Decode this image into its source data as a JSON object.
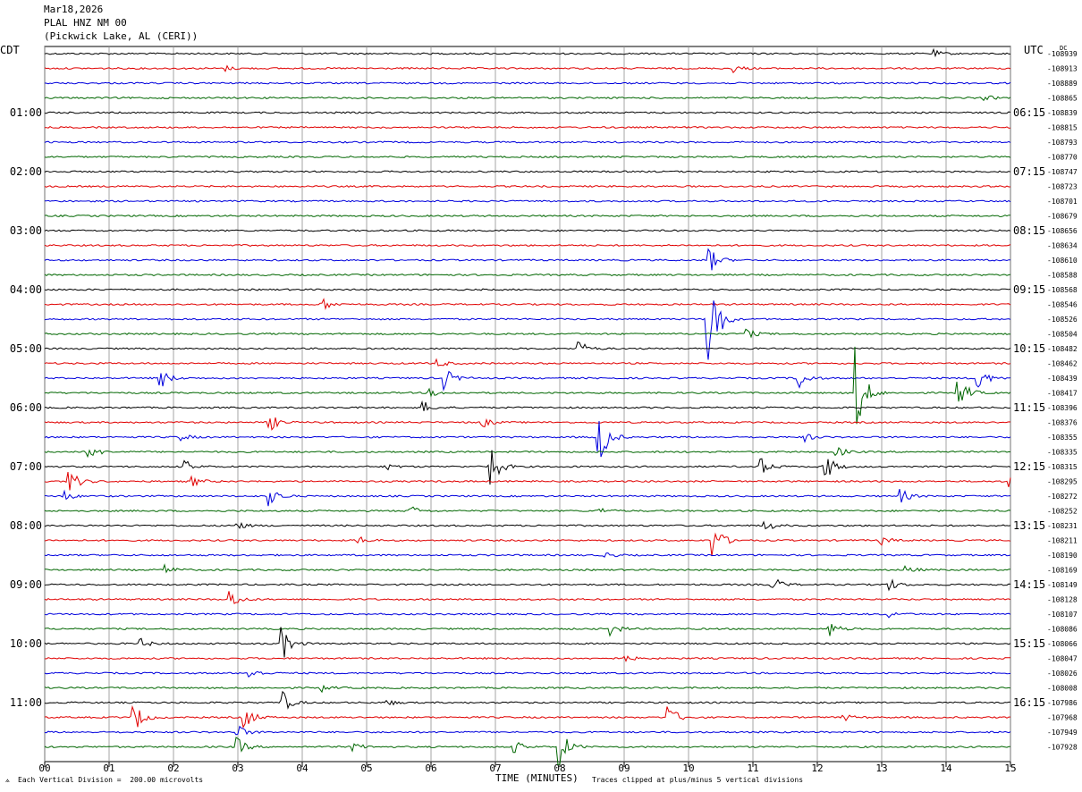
{
  "header": {
    "date": "Mar18,2026",
    "station": "PLAL HNZ NM 00",
    "location": "(Pickwick Lake, AL (CERI))"
  },
  "left_tz": "CDT",
  "right_tz": "UTC",
  "dc_label": "DC",
  "footer": {
    "scale_note": "Each Vertical Division =  200.00 microvolts",
    "clip_note": "Traces clipped at plus/minus 5 vertical divisions"
  },
  "colors": {
    "black": "#000000",
    "red": "#e00000",
    "blue": "#0000dd",
    "green": "#006600",
    "grid": "#909090"
  },
  "chart_data": {
    "type": "line",
    "subtype": "helicorder",
    "xlabel": "TIME (MINUTES)",
    "x_ticks": [
      "00",
      "01",
      "02",
      "03",
      "04",
      "05",
      "06",
      "07",
      "08",
      "09",
      "10",
      "11",
      "12",
      "13",
      "14",
      "15"
    ],
    "xlim": [
      0,
      15
    ],
    "trace_colors": [
      "black",
      "red",
      "blue",
      "green"
    ],
    "left_hour_labels": [
      "01:00",
      "02:00",
      "03:00",
      "04:00",
      "05:00",
      "06:00",
      "07:00",
      "08:00",
      "09:00",
      "10:00",
      "11:00"
    ],
    "right_hour_labels": [
      "06:15",
      "07:15",
      "08:15",
      "09:15",
      "10:15",
      "11:15",
      "12:15",
      "13:15",
      "14:15",
      "15:15",
      "16:15"
    ],
    "dc_offsets": [
      "-108939",
      "-108913",
      "-108889",
      "-108865",
      "-108839",
      "-108815",
      "-108793",
      "-108770",
      "-108747",
      "-108723",
      "-108701",
      "-108679",
      "-108656",
      "-108634",
      "-108610",
      "-108588",
      "-108568",
      "-108546",
      "-108526",
      "-108504",
      "-108482",
      "-108462",
      "-108439",
      "-108417",
      "-108396",
      "-108376",
      "-108355",
      "-108335",
      "-108315",
      "-108295",
      "-108272",
      "-108252",
      "-108231",
      "-108211",
      "-108190",
      "-108169",
      "-108149",
      "-108128",
      "-108107",
      "-108086",
      "-108066",
      "-108047",
      "-108026",
      "-108008",
      "-107986",
      "-107968",
      "-107949",
      "-107928"
    ],
    "events": [
      {
        "line": 0,
        "minute": 13.8,
        "amp": 4
      },
      {
        "line": 1,
        "minute": 2.8,
        "amp": 3
      },
      {
        "line": 1,
        "minute": 10.7,
        "amp": 4
      },
      {
        "line": 3,
        "minute": 14.6,
        "amp": 3
      },
      {
        "line": 14,
        "minute": 10.3,
        "amp": 18
      },
      {
        "line": 17,
        "minute": 4.3,
        "amp": 8
      },
      {
        "line": 18,
        "minute": 10.3,
        "amp": 85
      },
      {
        "line": 19,
        "minute": 10.9,
        "amp": 6
      },
      {
        "line": 20,
        "minute": 8.3,
        "amp": 9
      },
      {
        "line": 21,
        "minute": 6.1,
        "amp": 5
      },
      {
        "line": 22,
        "minute": 1.8,
        "amp": 12
      },
      {
        "line": 22,
        "minute": 6.2,
        "amp": 14
      },
      {
        "line": 22,
        "minute": 11.7,
        "amp": 14
      },
      {
        "line": 22,
        "minute": 14.5,
        "amp": 15
      },
      {
        "line": 23,
        "minute": 6.0,
        "amp": 4
      },
      {
        "line": 23,
        "minute": 12.6,
        "amp": 55
      },
      {
        "line": 23,
        "minute": 14.2,
        "amp": 20
      },
      {
        "line": 24,
        "minute": 5.9,
        "amp": 6
      },
      {
        "line": 25,
        "minute": 3.5,
        "amp": 10
      },
      {
        "line": 25,
        "minute": 6.8,
        "amp": 6
      },
      {
        "line": 26,
        "minute": 2.1,
        "amp": 5
      },
      {
        "line": 26,
        "minute": 8.6,
        "amp": 38
      },
      {
        "line": 26,
        "minute": 11.8,
        "amp": 5
      },
      {
        "line": 27,
        "minute": 0.7,
        "amp": 8
      },
      {
        "line": 27,
        "minute": 12.3,
        "amp": 6
      },
      {
        "line": 28,
        "minute": 2.2,
        "amp": 6
      },
      {
        "line": 28,
        "minute": 5.3,
        "amp": 4
      },
      {
        "line": 28,
        "minute": 6.9,
        "amp": 32
      },
      {
        "line": 28,
        "minute": 11.1,
        "amp": 12
      },
      {
        "line": 28,
        "minute": 12.1,
        "amp": 20
      },
      {
        "line": 29,
        "minute": 0.4,
        "amp": 14
      },
      {
        "line": 29,
        "minute": 2.3,
        "amp": 6
      },
      {
        "line": 29,
        "minute": 15.0,
        "amp": 6
      },
      {
        "line": 30,
        "minute": 0.3,
        "amp": 6
      },
      {
        "line": 30,
        "minute": 3.5,
        "amp": 12
      },
      {
        "line": 30,
        "minute": 13.3,
        "amp": 8
      },
      {
        "line": 31,
        "minute": 5.7,
        "amp": 5
      },
      {
        "line": 31,
        "minute": 8.6,
        "amp": 4
      },
      {
        "line": 32,
        "minute": 3.0,
        "amp": 4
      },
      {
        "line": 32,
        "minute": 11.2,
        "amp": 6
      },
      {
        "line": 33,
        "minute": 4.9,
        "amp": 4
      },
      {
        "line": 33,
        "minute": 10.4,
        "amp": 20
      },
      {
        "line": 33,
        "minute": 13.0,
        "amp": 5
      },
      {
        "line": 34,
        "minute": 8.7,
        "amp": 4
      },
      {
        "line": 35,
        "minute": 1.9,
        "amp": 5
      },
      {
        "line": 35,
        "minute": 13.4,
        "amp": 4
      },
      {
        "line": 36,
        "minute": 11.3,
        "amp": 10
      },
      {
        "line": 36,
        "minute": 13.1,
        "amp": 8
      },
      {
        "line": 37,
        "minute": 2.9,
        "amp": 10
      },
      {
        "line": 38,
        "minute": 13.1,
        "amp": 4
      },
      {
        "line": 39,
        "minute": 8.8,
        "amp": 8
      },
      {
        "line": 39,
        "minute": 12.2,
        "amp": 8
      },
      {
        "line": 40,
        "minute": 1.5,
        "amp": 5
      },
      {
        "line": 40,
        "minute": 3.7,
        "amp": 18
      },
      {
        "line": 41,
        "minute": 9.0,
        "amp": 4
      },
      {
        "line": 42,
        "minute": 3.2,
        "amp": 6
      },
      {
        "line": 43,
        "minute": 4.3,
        "amp": 4
      },
      {
        "line": 44,
        "minute": 3.7,
        "amp": 12
      },
      {
        "line": 44,
        "minute": 5.3,
        "amp": 4
      },
      {
        "line": 45,
        "minute": 1.4,
        "amp": 16
      },
      {
        "line": 45,
        "minute": 3.1,
        "amp": 16
      },
      {
        "line": 45,
        "minute": 9.7,
        "amp": 14
      },
      {
        "line": 45,
        "minute": 12.4,
        "amp": 4
      },
      {
        "line": 46,
        "minute": 3.0,
        "amp": 8
      },
      {
        "line": 47,
        "minute": 3.0,
        "amp": 10
      },
      {
        "line": 47,
        "minute": 4.8,
        "amp": 5
      },
      {
        "line": 47,
        "minute": 7.3,
        "amp": 7
      },
      {
        "line": 47,
        "minute": 8.0,
        "amp": 22
      }
    ]
  }
}
